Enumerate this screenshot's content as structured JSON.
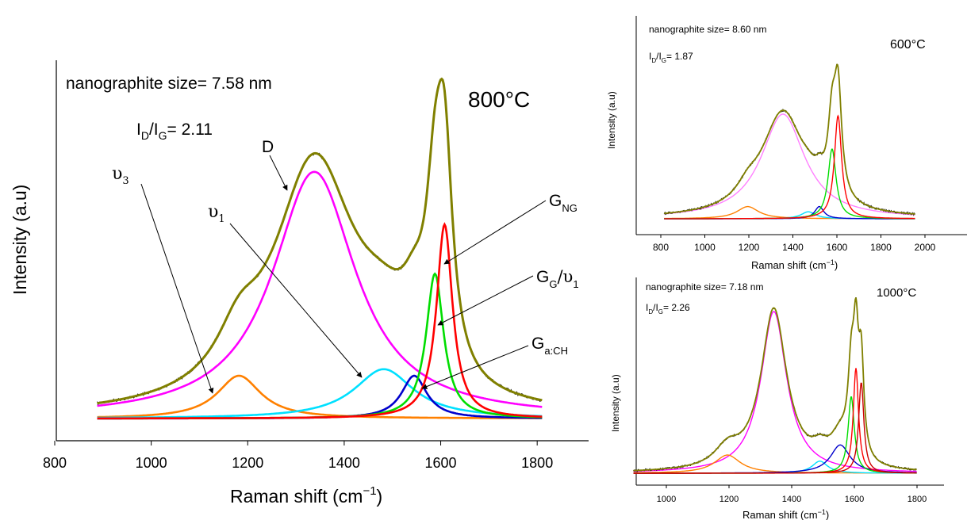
{
  "chart_data": [
    {
      "type": "line",
      "id": "main",
      "temperature": "800°C",
      "size_text": "nanographite size= 7.58 nm",
      "ratio": {
        "I": "I",
        "D": "D",
        "sep": "/I",
        "G": "G",
        "value": "= 2.11"
      },
      "xlabel": "Raman shift (cm",
      "xlabel_sup": "−1",
      "xlabel_close": ")",
      "ylabel": "Intensity (a.u)",
      "xlim": [
        800,
        1900
      ],
      "ylim": [
        0,
        1.0
      ],
      "xticks": [
        "800",
        "1000",
        "1200",
        "1400",
        "1600",
        "1800"
      ],
      "series": [
        {
          "color": "#ff00ff",
          "center": 1338,
          "hwhm": 105,
          "amp": 0.75
        },
        {
          "color": "#ff8000",
          "center": 1182,
          "hwhm": 55,
          "amp": 0.13
        },
        {
          "color": "#00e0ff",
          "center": 1482,
          "hwhm": 75,
          "amp": 0.15
        },
        {
          "color": "#0000cc",
          "center": 1545,
          "hwhm": 32,
          "amp": 0.13
        },
        {
          "color": "#00dd00",
          "center": 1588,
          "hwhm": 22,
          "amp": 0.44
        },
        {
          "color": "#ff0000",
          "center": 1608,
          "hwhm": 20,
          "amp": 0.59
        }
      ],
      "fit_color": "#808000",
      "labels": {
        "D": "D",
        "u3": "υ",
        "u3_sub": "3",
        "u1": "υ",
        "u1_sub": "1",
        "GNG": "G",
        "GNG_sub": "NG",
        "GG": "G",
        "GG_sub": "G",
        "GG_sep": "/υ",
        "GG_sub2": "1",
        "GaCH": "G",
        "GaCH_sub": "a:CH"
      }
    },
    {
      "type": "line",
      "id": "t600",
      "temperature": "600°C",
      "size_text": "nanographite size= 8.60 nm",
      "ratio": {
        "I": "I",
        "D": "D",
        "sep": "/I",
        "G": "G",
        "value": "= 1.87"
      },
      "xlabel": "Raman shift (cm",
      "xlabel_sup": "−1",
      "xlabel_close": ")",
      "ylabel": "Intensity (a.u)",
      "xlim": [
        700,
        2050
      ],
      "ylim": [
        0,
        1.0
      ],
      "xticks": [
        "800",
        "1000",
        "1200",
        "1400",
        "1600",
        "1800",
        "2000"
      ],
      "series": [
        {
          "color": "#ff80ff",
          "center": 1355,
          "hwhm": 120,
          "amp": 0.6
        },
        {
          "color": "#ff8000",
          "center": 1195,
          "hwhm": 60,
          "amp": 0.07
        },
        {
          "color": "#00e0ff",
          "center": 1470,
          "hwhm": 40,
          "amp": 0.04
        },
        {
          "color": "#0000cc",
          "center": 1520,
          "hwhm": 25,
          "amp": 0.07
        },
        {
          "color": "#00dd00",
          "center": 1578,
          "hwhm": 22,
          "amp": 0.4
        },
        {
          "color": "#ff0000",
          "center": 1605,
          "hwhm": 20,
          "amp": 0.59
        }
      ],
      "fit_color": "#808000"
    },
    {
      "type": "line",
      "id": "t1000",
      "temperature": "1000°C",
      "size_text": "nanographite size= 7.18 nm",
      "ratio": {
        "I": "I",
        "D": "D",
        "sep": "/I",
        "G": "G",
        "value": "= 2.26"
      },
      "xlabel": "Raman shift (cm",
      "xlabel_sup": "−1",
      "xlabel_close": ")",
      "ylabel": "Intensity (a.u)",
      "xlim": [
        900,
        1900
      ],
      "ylim": [
        0,
        1.0
      ],
      "xticks": [
        "1000",
        "1200",
        "1400",
        "1600",
        "1800"
      ],
      "series": [
        {
          "color": "#ff00ff",
          "center": 1343,
          "hwhm": 50,
          "amp": 0.8
        },
        {
          "color": "#ff8000",
          "center": 1195,
          "hwhm": 50,
          "amp": 0.09
        },
        {
          "color": "#00e0ff",
          "center": 1490,
          "hwhm": 30,
          "amp": 0.06
        },
        {
          "color": "#0000cc",
          "center": 1555,
          "hwhm": 38,
          "amp": 0.14
        },
        {
          "color": "#00dd00",
          "center": 1590,
          "hwhm": 12,
          "amp": 0.38
        },
        {
          "color": "#ff0000",
          "center": 1605,
          "hwhm": 10,
          "amp": 0.52
        },
        {
          "color": "#cc0000",
          "center": 1622,
          "hwhm": 10,
          "amp": 0.45
        }
      ],
      "fit_color": "#808000"
    }
  ]
}
